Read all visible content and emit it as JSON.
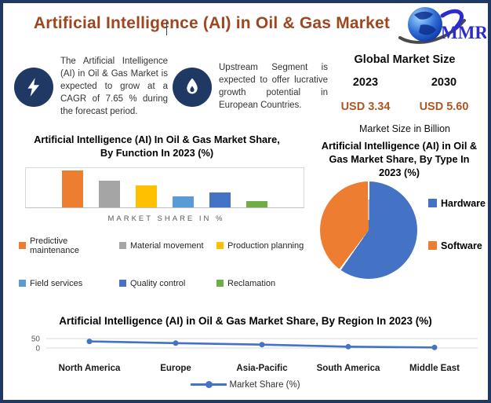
{
  "header": {
    "title": "Artificial Intelligence (AI) in Oil & Gas Market",
    "logo_text": "MMR"
  },
  "colors": {
    "border_navy": "#1F3864",
    "title_brown": "#9C4722",
    "value_brown": "#AE5722",
    "icon_navy": "#1F3864",
    "axis_gray": "#595959",
    "gridline_gray": "#D9D9D9",
    "logo_blue": "#2B2BD0"
  },
  "highlights": [
    {
      "icon": "lightning-icon",
      "text": "The Artificial Intelligence (AI) in Oil & Gas Market is expected to grow at a CAGR of 7.65 % during the forecast period."
    },
    {
      "icon": "flame-icon",
      "text": "Upstream Segment is expected to offer lucrative growth potential in European Countries."
    }
  ],
  "market_size": {
    "heading": "Global Market Size",
    "columns": [
      {
        "year": "2023",
        "value": "USD 3.34"
      },
      {
        "year": "2030",
        "value": "USD 5.60"
      }
    ],
    "note": "Market Size in Billion"
  },
  "chart_data": [
    {
      "type": "bar",
      "title": "Artificial Intelligence (AI) In Oil & Gas Market Share, By Function In 2023 (%)",
      "xlabel": "MARKET SHARE IN %",
      "categories": [
        "Predictive maintenance",
        "Material movement",
        "Production planning",
        "Field services",
        "Quality control",
        "Reclamation"
      ],
      "values": [
        30,
        22,
        18,
        9,
        12,
        5
      ],
      "colors": [
        "#ED7D31",
        "#A5A5A5",
        "#FFC000",
        "#5B9BD5",
        "#4472C4",
        "#70AD47"
      ],
      "ylim": [
        0,
        32
      ],
      "grid": false,
      "legend_position": "bottom"
    },
    {
      "type": "pie",
      "title": "Artificial Intelligence (AI) in Oil & Gas Market Share, By Type In 2023 (%)",
      "categories": [
        "Hardware",
        "Software"
      ],
      "values": [
        60,
        40
      ],
      "colors": [
        "#4472C4",
        "#ED7D31"
      ],
      "legend_position": "right"
    },
    {
      "type": "line",
      "title": "Artificial Intelligence (AI) in Oil & Gas Market Share, By Region In 2023 (%)",
      "x": [
        "North America",
        "Europe",
        "Asia-Pacific",
        "South America",
        "Middle East"
      ],
      "series": [
        {
          "name": "Market Share (%)",
          "color": "#4472C4",
          "values": [
            35,
            26,
            18,
            7,
            3
          ]
        }
      ],
      "ylim": [
        0,
        50
      ],
      "yticks": [
        50,
        0
      ],
      "grid": true,
      "legend_position": "bottom"
    }
  ]
}
